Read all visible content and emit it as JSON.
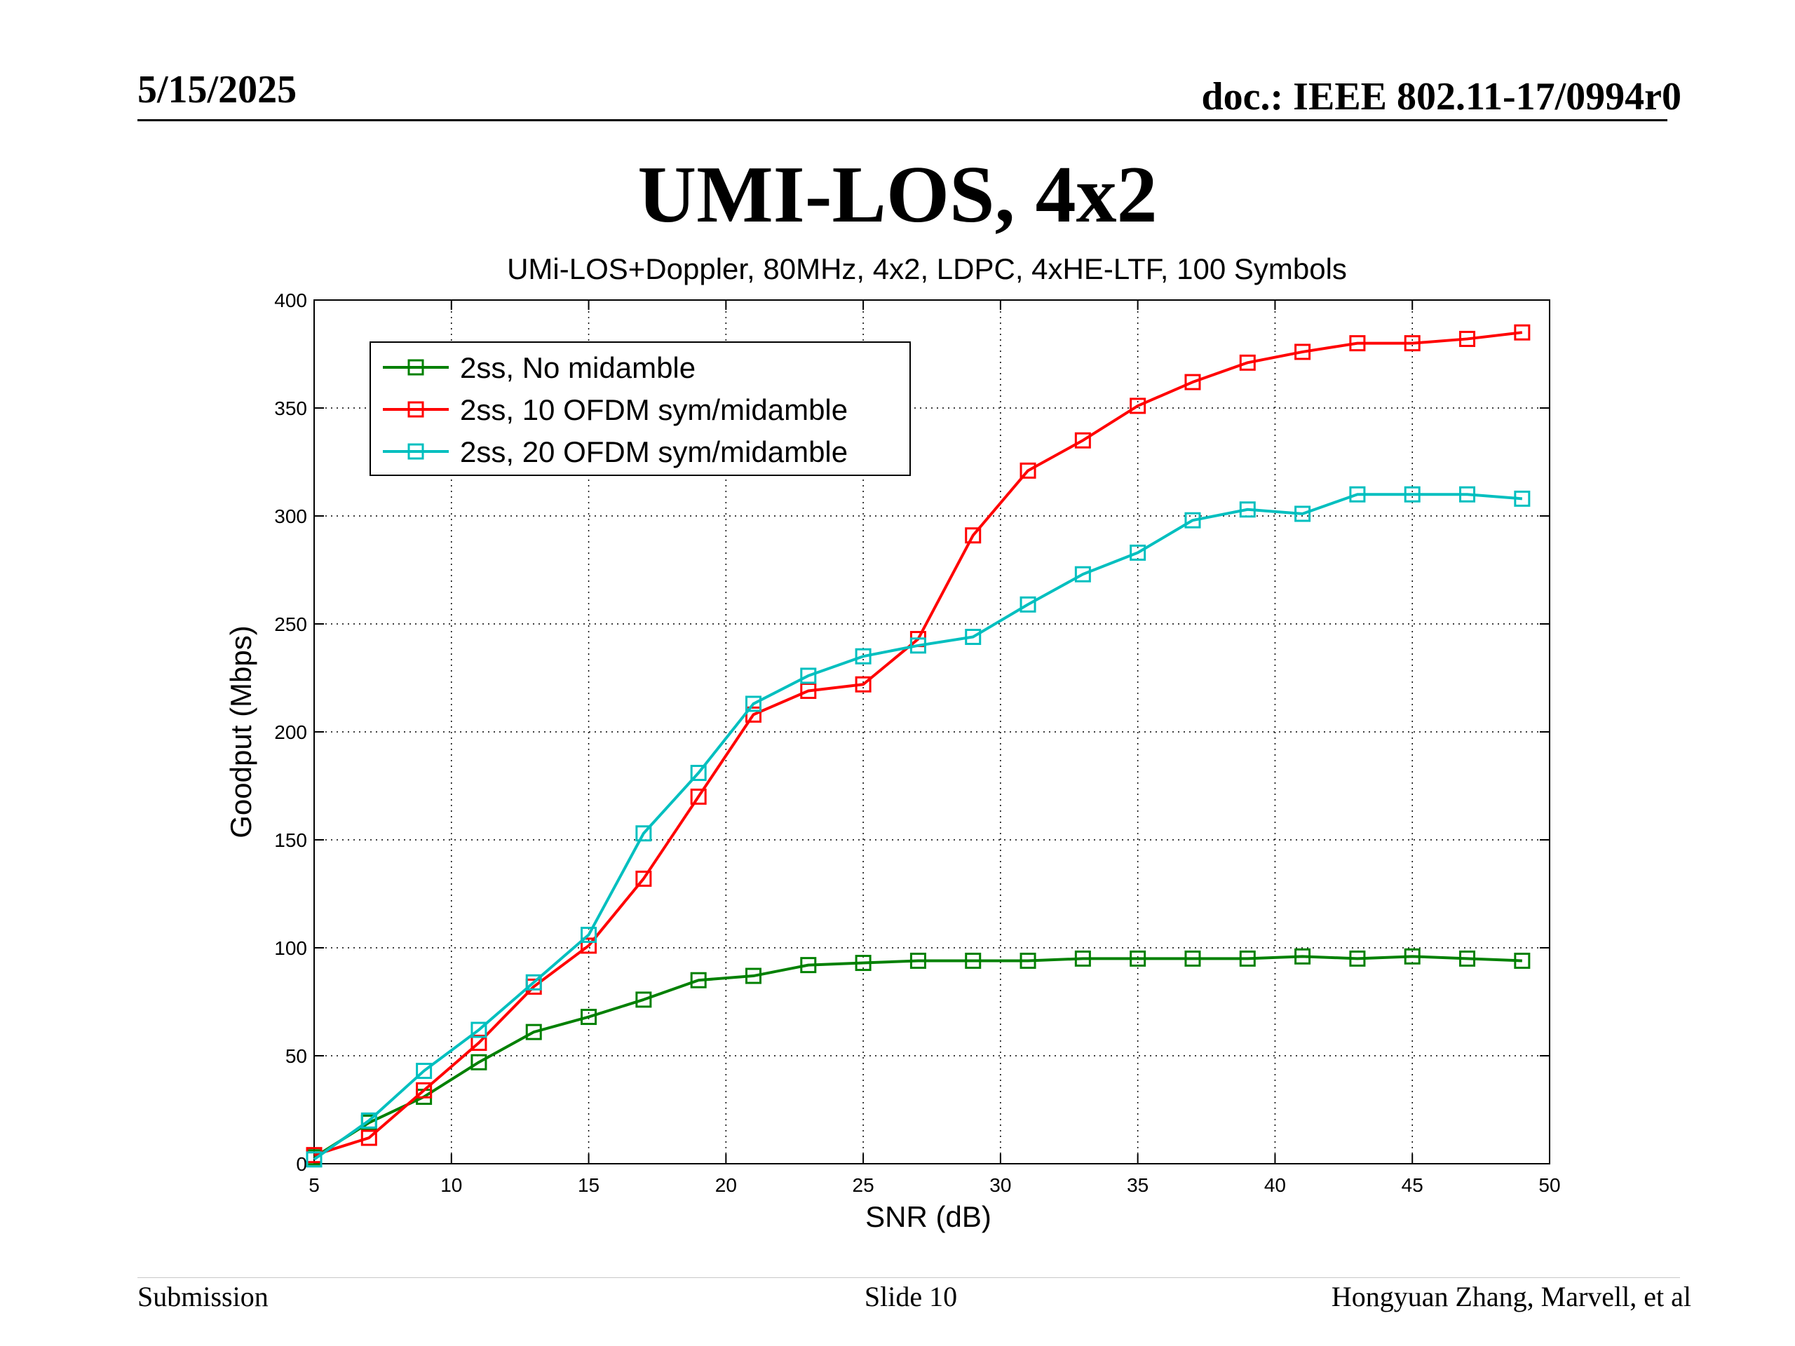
{
  "header": {
    "date": "5/15/2025",
    "doc": "doc.: IEEE 802.11-17/0994r0"
  },
  "slide_title": "UMI-LOS, 4x2",
  "footer": {
    "left": "Submission",
    "center": "Slide 10",
    "right": "Hongyuan Zhang, Marvell, et al"
  },
  "chart_data": {
    "type": "line",
    "title": "UMi-LOS+Doppler, 80MHz, 4x2, LDPC, 4xHE-LTF, 100 Symbols",
    "xlabel": "SNR (dB)",
    "ylabel": "Goodput (Mbps)",
    "xlim": [
      5,
      50
    ],
    "ylim": [
      0,
      400
    ],
    "xticks": [
      5,
      10,
      15,
      20,
      25,
      30,
      35,
      40,
      45,
      50
    ],
    "yticks": [
      0,
      50,
      100,
      150,
      200,
      250,
      300,
      350,
      400
    ],
    "grid": true,
    "legend_position": "top-left",
    "marker": "square",
    "x": [
      5,
      7,
      9,
      11,
      13,
      15,
      17,
      19,
      21,
      23,
      25,
      27,
      29,
      31,
      33,
      35,
      37,
      39,
      41,
      43,
      45,
      47,
      49
    ],
    "series": [
      {
        "name": "2ss, No midamble",
        "color": "#008000",
        "values": [
          3,
          19,
          31,
          47,
          61,
          68,
          76,
          85,
          87,
          92,
          93,
          94,
          94,
          94,
          95,
          95,
          95,
          95,
          96,
          95,
          96,
          95,
          94
        ]
      },
      {
        "name": "2ss, 10 OFDM sym/midamble",
        "color": "#ff0000",
        "values": [
          4,
          12,
          34,
          56,
          82,
          101,
          132,
          170,
          208,
          219,
          222,
          243,
          291,
          321,
          335,
          351,
          362,
          371,
          376,
          380,
          380,
          382,
          385
        ]
      },
      {
        "name": "2ss, 20 OFDM sym/midamble",
        "color": "#00bfbf",
        "values": [
          2,
          20,
          43,
          62,
          84,
          106,
          153,
          181,
          213,
          226,
          235,
          240,
          244,
          259,
          273,
          283,
          298,
          303,
          301,
          310,
          310,
          310,
          308
        ]
      }
    ]
  }
}
